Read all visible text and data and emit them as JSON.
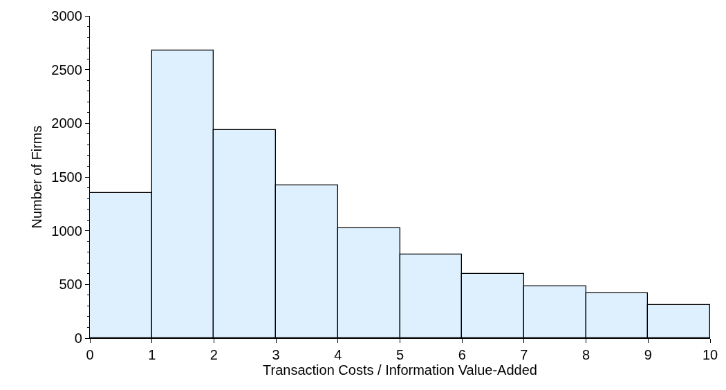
{
  "chart_data": {
    "type": "histogram",
    "xlabel": "Transaction Costs / Information Value-Added",
    "ylabel": "Number of Firms",
    "bins": [
      0,
      1,
      2,
      3,
      4,
      5,
      6,
      7,
      8,
      9,
      10
    ],
    "values": [
      1350,
      2680,
      1940,
      1420,
      1025,
      780,
      600,
      480,
      420,
      310
    ],
    "color": "#def0fe",
    "xlim": [
      0,
      10
    ],
    "xticks": [
      0,
      1,
      2,
      3,
      4,
      5,
      6,
      7,
      8,
      9,
      10
    ],
    "ylim": [
      0,
      3000
    ],
    "yticks": [
      0,
      {
        "value": 100,
        "label": null
      },
      {
        "value": 200,
        "label": null
      },
      {
        "value": 300,
        "label": null
      },
      {
        "value": 400,
        "label": null
      },
      500,
      {
        "value": 600,
        "label": null
      },
      {
        "value": 700,
        "label": null
      },
      {
        "value": 800,
        "label": null
      },
      {
        "value": 900,
        "label": null
      },
      1000,
      {
        "value": 1100,
        "label": null
      },
      {
        "value": 1200,
        "label": null
      },
      {
        "value": 1300,
        "label": null
      },
      {
        "value": 1400,
        "label": null
      },
      1500,
      {
        "value": 1600,
        "label": null
      },
      {
        "value": 1700,
        "label": null
      },
      {
        "value": 1800,
        "label": null
      },
      {
        "value": 1900,
        "label": null
      },
      2000,
      {
        "value": 2100,
        "label": null
      },
      {
        "value": 2200,
        "label": null
      },
      {
        "value": 2300,
        "label": null
      },
      {
        "value": 2400,
        "label": null
      },
      2500,
      {
        "value": 2600,
        "label": null
      },
      {
        "value": 2700,
        "label": null
      },
      {
        "value": 2800,
        "label": null
      },
      {
        "value": 2900,
        "label": null
      },
      3000
    ],
    "grid": false
  }
}
